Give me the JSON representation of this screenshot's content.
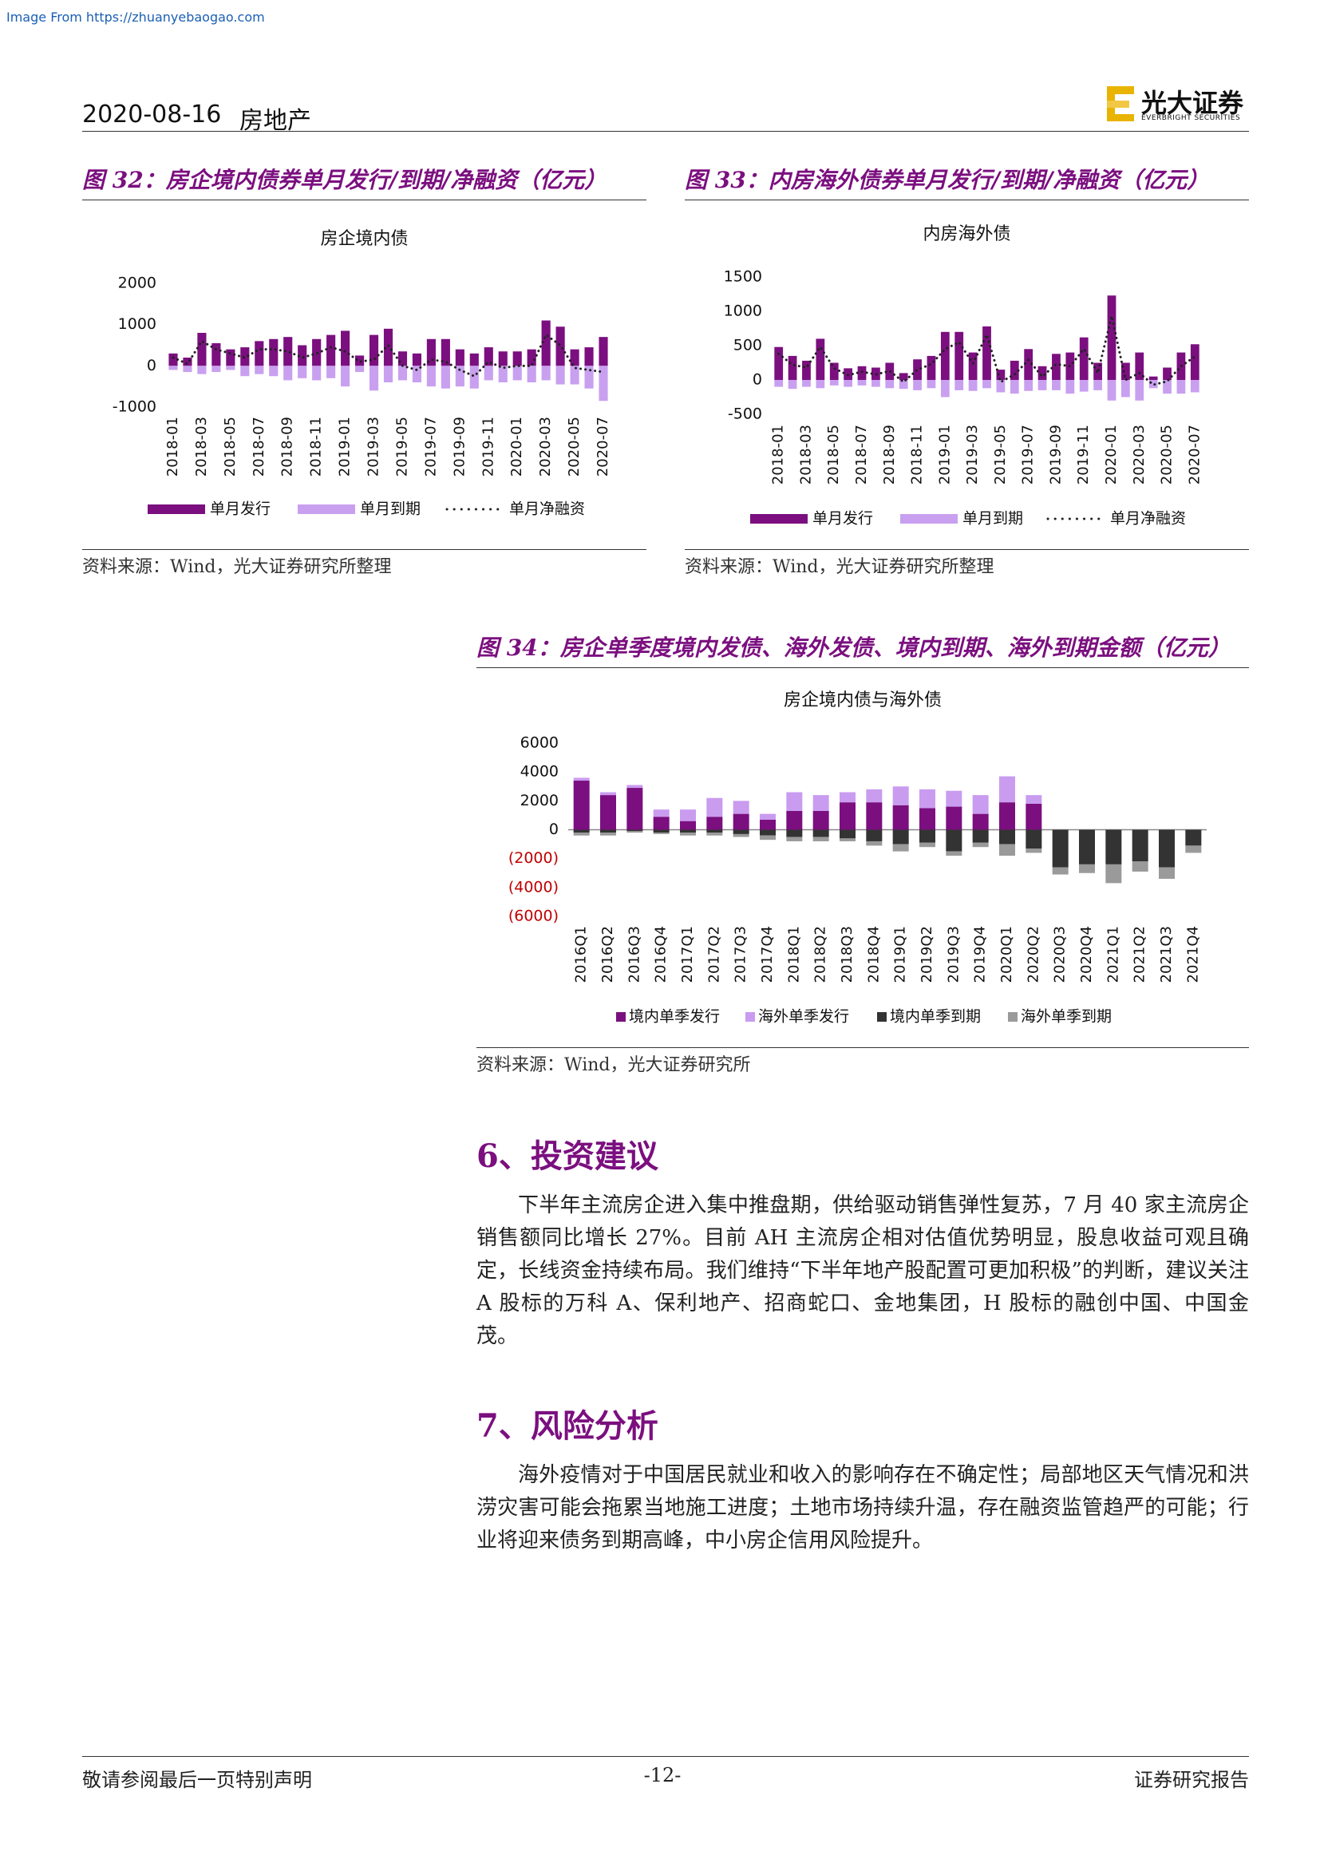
{
  "source_banner": "Image From https://zhuanyebaogao.com",
  "header": {
    "date": "2020-08-16",
    "sector": "房地产",
    "logo_cn": "光大证券",
    "logo_en": "EVERBRIGHT SECURITIES"
  },
  "figures": [
    {
      "caption": "图 32：房企境内债券单月发行/到期/净融资（亿元）",
      "source": "资料来源：Wind，光大证券研究所整理"
    },
    {
      "caption": "图 33：内房海外债券单月发行/到期/净融资（亿元）",
      "source": "资料来源：Wind，光大证券研究所整理"
    },
    {
      "caption": "图 34：房企单季度境内发债、海外发债、境内到期、海外到期金额（亿元）",
      "source": "资料来源：Wind，光大证券研究所"
    }
  ],
  "chart_data": [
    {
      "type": "bar",
      "title": "房企境内债",
      "categories": [
        "2018-01",
        null,
        "2018-03",
        null,
        "2018-05",
        null,
        "2018-07",
        null,
        "2018-09",
        null,
        "2018-11",
        null,
        "2019-01",
        null,
        "2019-03",
        null,
        "2019-05",
        null,
        "2019-07",
        null,
        "2019-09",
        null,
        "2019-11",
        null,
        "2020-01",
        null,
        "2020-03",
        null,
        "2020-05",
        null,
        "2020-07"
      ],
      "series": [
        {
          "name": "单月发行",
          "type": "bar",
          "color": "#7b0f7f",
          "values": [
            300,
            200,
            800,
            550,
            400,
            450,
            600,
            650,
            700,
            500,
            650,
            750,
            850,
            250,
            750,
            900,
            350,
            300,
            650,
            650,
            400,
            300,
            450,
            350,
            350,
            400,
            1100,
            950,
            400,
            450,
            700
          ]
        },
        {
          "name": "单月到期",
          "type": "bar",
          "color": "#c9a0f0",
          "values": [
            -100,
            -150,
            -200,
            -150,
            -100,
            -250,
            -200,
            -250,
            -350,
            -300,
            -350,
            -300,
            -500,
            -150,
            -600,
            -400,
            -350,
            -400,
            -500,
            -550,
            -500,
            -550,
            -350,
            -400,
            -350,
            -400,
            -350,
            -450,
            -450,
            -550,
            -850
          ]
        },
        {
          "name": "单月净融资",
          "type": "line",
          "color": "#222222",
          "values": [
            200,
            50,
            600,
            400,
            300,
            200,
            400,
            400,
            350,
            200,
            300,
            450,
            350,
            100,
            150,
            500,
            0,
            -100,
            150,
            100,
            -100,
            -250,
            100,
            -50,
            0,
            0,
            750,
            500,
            -50,
            -100,
            -150
          ]
        }
      ],
      "ylim": [
        -1000,
        2000
      ],
      "yticks": [
        -1000,
        0,
        1000,
        2000
      ]
    },
    {
      "type": "bar",
      "title": "内房海外债",
      "categories": [
        "2018-01",
        null,
        "2018-03",
        null,
        "2018-05",
        null,
        "2018-07",
        null,
        "2018-09",
        null,
        "2018-11",
        null,
        "2019-01",
        null,
        "2019-03",
        null,
        "2019-05",
        null,
        "2019-07",
        null,
        "2019-09",
        null,
        "2019-11",
        null,
        "2020-01",
        null,
        "2020-03",
        null,
        "2020-05",
        null,
        "2020-07"
      ],
      "series": [
        {
          "name": "单月发行",
          "type": "bar",
          "color": "#7b0f7f",
          "values": [
            480,
            350,
            280,
            600,
            250,
            170,
            200,
            180,
            250,
            100,
            300,
            350,
            700,
            700,
            400,
            780,
            150,
            280,
            450,
            200,
            380,
            400,
            620,
            250,
            1230,
            250,
            400,
            50,
            180,
            400,
            520
          ]
        },
        {
          "name": "单月到期",
          "type": "bar",
          "color": "#c9a0f0",
          "values": [
            -100,
            -130,
            -100,
            -120,
            -80,
            -100,
            -80,
            -100,
            -120,
            -130,
            -150,
            -120,
            -250,
            -150,
            -160,
            -120,
            -180,
            -200,
            -160,
            -150,
            -150,
            -200,
            -170,
            -150,
            -300,
            -250,
            -300,
            -120,
            -200,
            -200,
            -180
          ]
        },
        {
          "name": "单月净融资",
          "type": "line",
          "color": "#222222",
          "values": [
            380,
            220,
            180,
            480,
            170,
            70,
            120,
            80,
            130,
            -30,
            150,
            230,
            450,
            550,
            240,
            660,
            -30,
            80,
            290,
            50,
            230,
            200,
            450,
            100,
            930,
            0,
            100,
            -70,
            -20,
            200,
            340
          ]
        }
      ],
      "ylim": [
        -500,
        1500
      ],
      "yticks": [
        -500,
        0,
        500,
        1000,
        1500
      ]
    },
    {
      "type": "stacked_bar",
      "title": "房企境内债与海外债",
      "categories": [
        "2016Q1",
        "2016Q2",
        "2016Q3",
        "2016Q4",
        "2017Q1",
        "2017Q2",
        "2017Q3",
        "2017Q4",
        "2018Q1",
        "2018Q2",
        "2018Q3",
        "2018Q4",
        "2019Q1",
        "2019Q2",
        "2019Q3",
        "2019Q4",
        "2020Q1",
        "2020Q2",
        "2020Q3",
        "2020Q4",
        "2021Q1",
        "2021Q2",
        "2021Q3",
        "2021Q4"
      ],
      "series": [
        {
          "name": "境内单季发行",
          "color": "#7b0f7f",
          "values": [
            3400,
            2400,
            2900,
            900,
            600,
            900,
            1100,
            700,
            1300,
            1300,
            1900,
            1900,
            1700,
            1500,
            1600,
            1100,
            1900,
            1800,
            0,
            0,
            0,
            0,
            0,
            0
          ]
        },
        {
          "name": "海外单季发行",
          "color": "#c99cf0",
          "values": [
            200,
            200,
            200,
            500,
            800,
            1300,
            900,
            400,
            1300,
            1100,
            700,
            900,
            1300,
            1300,
            1100,
            1300,
            1800,
            600,
            0,
            0,
            0,
            0,
            0,
            0
          ]
        },
        {
          "name": "境内单季到期",
          "color": "#333333",
          "values": [
            -200,
            -200,
            -100,
            -200,
            -200,
            -200,
            -300,
            -400,
            -500,
            -500,
            -600,
            -800,
            -1000,
            -900,
            -1500,
            -900,
            -1000,
            -1300,
            -2600,
            -2400,
            -2400,
            -2200,
            -2600,
            -1100
          ]
        },
        {
          "name": "海外单季到期",
          "color": "#9a9a9a",
          "values": [
            -200,
            -200,
            -100,
            -100,
            -200,
            -200,
            -200,
            -300,
            -300,
            -300,
            -200,
            -300,
            -500,
            -300,
            -300,
            -300,
            -800,
            -300,
            -500,
            -600,
            -1300,
            -700,
            -800,
            -500
          ]
        }
      ],
      "ylim": [
        -6000,
        6000
      ],
      "yticks": [
        {
          "value": -6000,
          "label": "(6000)"
        },
        {
          "value": -4000,
          "label": "(4000)"
        },
        {
          "value": -2000,
          "label": "(2000)"
        },
        0,
        2000,
        4000,
        6000
      ],
      "negative_tick_color": "#c00000",
      "zero_line": true
    }
  ],
  "sections": [
    {
      "heading": "6、投资建议",
      "body": "下半年主流房企进入集中推盘期，供给驱动销售弹性复苏，7 月 40 家主流房企销售额同比增长 27%。目前 AH 主流房企相对估值优势明显，股息收益可观且确定，长线资金持续布局。我们维持“下半年地产股配置可更加积极”的判断，建议关注 A 股标的万科 A、保利地产、招商蛇口、金地集团，H 股标的融创中国、中国金茂。"
    },
    {
      "heading": "7、风险分析",
      "body": "海外疫情对于中国居民就业和收入的影响存在不确定性；局部地区天气情况和洪涝灾害可能会拖累当地施工进度；土地市场持续升温，存在融资监管趋严的可能；行业将迎来债务到期高峰，中小房企信用风险提升。"
    }
  ],
  "footer": {
    "left": "敬请参阅最后一页特别声明",
    "page": "-12-",
    "right": "证券研究报告"
  }
}
